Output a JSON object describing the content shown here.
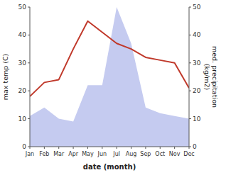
{
  "chart_data": {
    "type": "line",
    "categories": [
      "Jan",
      "Feb",
      "Mar",
      "Apr",
      "May",
      "Jun",
      "Jul",
      "Aug",
      "Sep",
      "Oct",
      "Nov",
      "Dec"
    ],
    "series": [
      {
        "type": "area",
        "color": "#c5cbf0",
        "axis": "y2",
        "values": [
          11,
          14,
          10,
          9,
          22,
          22,
          50,
          37,
          14,
          12,
          11,
          10
        ]
      },
      {
        "type": "line",
        "color": "#c0392b",
        "values": [
          18,
          23,
          24,
          35,
          45,
          41,
          37,
          35,
          32,
          31,
          30,
          21
        ]
      }
    ],
    "ylabel": "max temp (C)",
    "y2label": "med. precipitation\n(kg/m2)",
    "xlabel": "date (month)",
    "ylim": [
      0,
      50
    ],
    "yticks": [
      0,
      10,
      20,
      30,
      40,
      50
    ],
    "y2lim": [
      0,
      50
    ],
    "y2ticks": [
      0,
      10,
      20,
      30,
      40,
      50
    ]
  }
}
